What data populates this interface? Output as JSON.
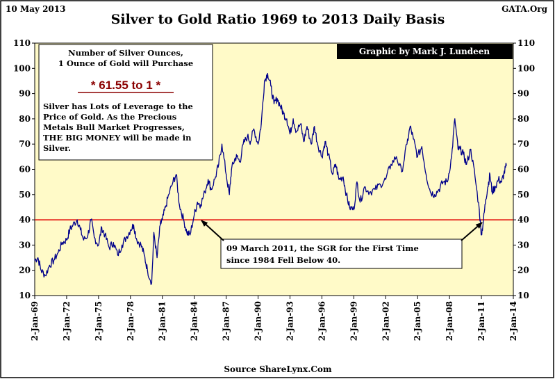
{
  "header": {
    "date": "10 May 2013",
    "title": "Silver to Gold Ratio 1969 to 2013 Daily Basis",
    "site": "GATA.Org"
  },
  "credit": "Graphic by Mark J. Lundeen",
  "source": "Source ShareLynx.Com",
  "info_box": {
    "heading_line1": "Number of Silver Ounces,",
    "heading_line2": "1 Ounce of Gold will Purchase",
    "ratio": "* 61.55 to 1 *",
    "body_lines": [
      "Silver has Lots of Leverage to the",
      "Price of Gold.  As the Precious",
      "Metals Bull Market Progresses,",
      "THE BIG MONEY  will be made in",
      "Silver."
    ]
  },
  "callout": {
    "line1": "09 March 2011, the SGR for the First Time",
    "line2": "since 1984 Fell Below 40."
  },
  "colors": {
    "plot_bg": "#FFFAC8",
    "series": "#00008B",
    "reference": "#E00000",
    "ratio_text": "#8B0000",
    "credit_bg": "#000000",
    "credit_text": "#FFFFFF"
  },
  "chart_data": {
    "type": "line",
    "title": "Silver to Gold Ratio 1969 to 2013 Daily Basis",
    "xlabel": "",
    "ylabel": "",
    "xlim": [
      1969.0,
      2014.0
    ],
    "ylim": [
      10,
      110
    ],
    "yticks": [
      10,
      20,
      30,
      40,
      50,
      60,
      70,
      80,
      90,
      100,
      110
    ],
    "x_tick_labels": [
      "2-Jan-69",
      "2-Jan-72",
      "2-Jan-75",
      "2-Jan-78",
      "2-Jan-81",
      "2-Jan-84",
      "2-Jan-87",
      "2-Jan-90",
      "2-Jan-93",
      "2-Jan-96",
      "2-Jan-99",
      "2-Jan-02",
      "2-Jan-05",
      "2-Jan-08",
      "2-Jan-11",
      "2-Jan-14"
    ],
    "x_tick_years": [
      1969,
      1972,
      1975,
      1978,
      1981,
      1984,
      1987,
      1990,
      1993,
      1996,
      1999,
      2002,
      2005,
      2008,
      2011,
      2014
    ],
    "reference_line": {
      "y": 40
    },
    "series": [
      {
        "name": "Silver to Gold Ratio",
        "x": [
          1969.0,
          1969.3,
          1969.6,
          1970.0,
          1970.4,
          1970.8,
          1971.2,
          1971.6,
          1972.0,
          1972.3,
          1972.6,
          1973.0,
          1973.3,
          1973.6,
          1974.0,
          1974.3,
          1974.6,
          1975.0,
          1975.3,
          1975.6,
          1976.0,
          1976.4,
          1976.8,
          1977.2,
          1977.6,
          1978.0,
          1978.3,
          1978.6,
          1979.0,
          1979.3,
          1979.6,
          1980.0,
          1980.2,
          1980.5,
          1980.8,
          1981.0,
          1981.3,
          1981.6,
          1982.0,
          1982.3,
          1982.6,
          1983.0,
          1983.3,
          1983.6,
          1984.0,
          1984.3,
          1984.6,
          1985.0,
          1985.3,
          1985.6,
          1986.0,
          1986.3,
          1986.6,
          1987.0,
          1987.3,
          1987.5,
          1987.8,
          1988.0,
          1988.3,
          1988.6,
          1989.0,
          1989.3,
          1989.6,
          1990.0,
          1990.3,
          1990.6,
          1990.9,
          1991.2,
          1991.5,
          1991.8,
          1992.1,
          1992.4,
          1992.7,
          1993.0,
          1993.3,
          1993.6,
          1994.0,
          1994.3,
          1994.6,
          1995.0,
          1995.3,
          1995.6,
          1996.0,
          1996.3,
          1996.6,
          1997.0,
          1997.3,
          1997.6,
          1998.0,
          1998.3,
          1998.6,
          1999.0,
          1999.3,
          1999.6,
          2000.0,
          2000.5,
          2001.0,
          2001.5,
          2002.0,
          2002.5,
          2003.0,
          2003.5,
          2004.0,
          2004.3,
          2004.6,
          2005.0,
          2005.4,
          2005.8,
          2006.2,
          2006.6,
          2007.0,
          2007.4,
          2007.8,
          2008.2,
          2008.5,
          2008.8,
          2009.0,
          2009.3,
          2009.6,
          2010.0,
          2010.4,
          2010.8,
          2011.0,
          2011.2,
          2011.4,
          2011.6,
          2011.8,
          2012.0,
          2012.3,
          2012.6,
          2012.9,
          2013.1,
          2013.35
        ],
        "y": [
          24,
          25,
          20,
          18,
          22,
          24,
          27,
          31,
          32,
          36,
          38,
          40,
          36,
          32,
          34,
          40,
          33,
          30,
          37,
          34,
          29,
          31,
          26,
          30,
          33,
          36,
          38,
          32,
          30,
          26,
          20,
          15,
          35,
          25,
          38,
          40,
          45,
          50,
          55,
          58,
          46,
          40,
          35,
          34,
          42,
          47,
          46,
          51,
          56,
          52,
          57,
          62,
          70,
          58,
          50,
          60,
          64,
          65,
          63,
          70,
          73,
          71,
          76,
          70,
          78,
          95,
          98,
          93,
          86,
          88,
          85,
          82,
          80,
          74,
          80,
          75,
          78,
          71,
          77,
          70,
          77,
          70,
          65,
          71,
          66,
          58,
          62,
          56,
          57,
          50,
          45,
          44,
          55,
          47,
          53,
          51,
          52,
          54,
          56,
          62,
          65,
          59,
          70,
          77,
          72,
          65,
          69,
          58,
          51,
          50,
          52,
          55,
          55,
          65,
          80,
          68,
          68,
          66,
          62,
          68,
          57,
          44,
          34,
          40,
          48,
          53,
          58,
          51,
          53,
          56,
          55,
          58,
          61.55
        ]
      }
    ]
  }
}
